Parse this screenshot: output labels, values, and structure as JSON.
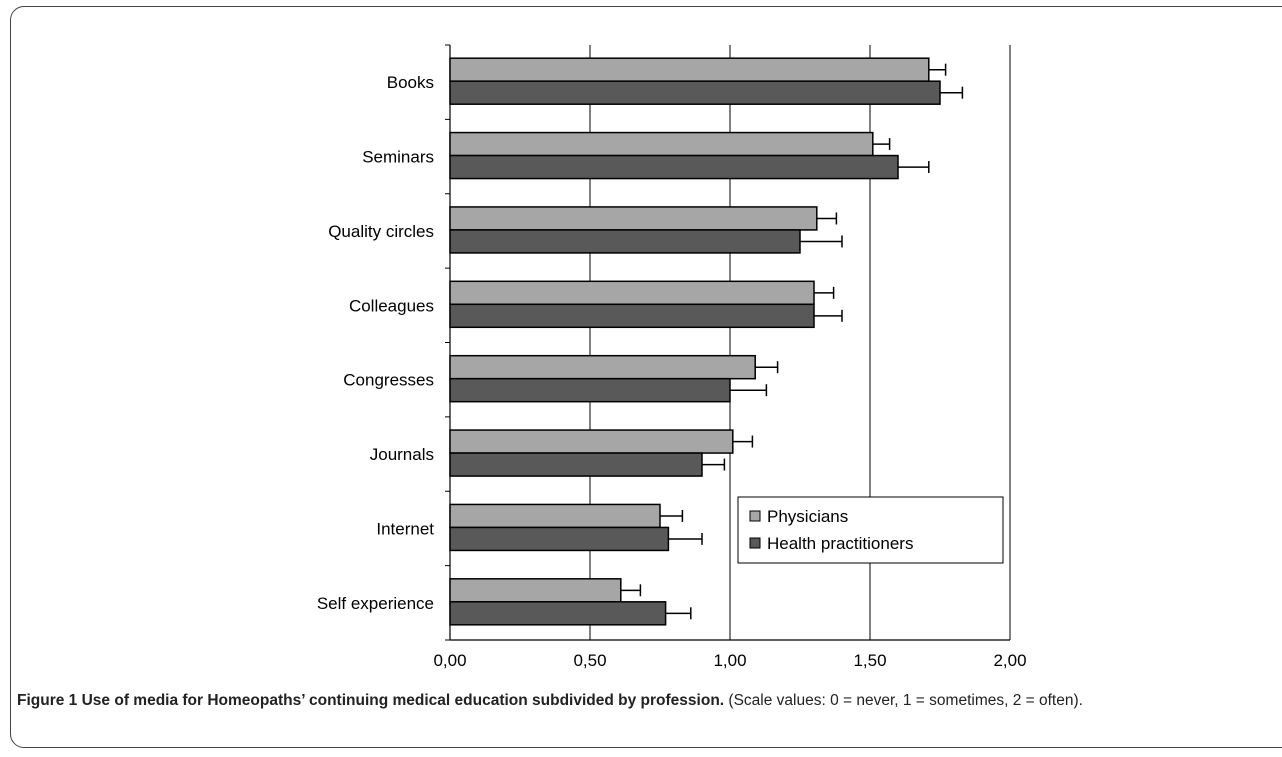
{
  "chart_data": {
    "type": "bar",
    "orientation": "horizontal",
    "categories": [
      "Books",
      "Seminars",
      "Quality circles",
      "Colleagues",
      "Congresses",
      "Journals",
      "Internet",
      "Self experience"
    ],
    "series": [
      {
        "name": "Physicians",
        "color": "#a6a6a6",
        "values": [
          1.71,
          1.51,
          1.31,
          1.3,
          1.09,
          1.01,
          0.75,
          0.61
        ],
        "errors": [
          0.06,
          0.06,
          0.07,
          0.07,
          0.08,
          0.07,
          0.08,
          0.07
        ]
      },
      {
        "name": "Health practitioners",
        "color": "#595959",
        "values": [
          1.75,
          1.6,
          1.25,
          1.3,
          1.0,
          0.9,
          0.78,
          0.77
        ],
        "errors": [
          0.08,
          0.11,
          0.15,
          0.1,
          0.13,
          0.08,
          0.12,
          0.09
        ]
      }
    ],
    "xlim": [
      0,
      2
    ],
    "xticks": [
      "0,00",
      "0,50",
      "1,00",
      "1,50",
      "2,00"
    ],
    "grid": "vertical",
    "legend": "lower-right"
  },
  "caption": {
    "label": "Figure 1",
    "title": "Use of media for Homeopaths’ continuing medical education subdivided by profession.",
    "note": "(Scale values: 0 = never, 1 = sometimes, 2 = often)."
  }
}
